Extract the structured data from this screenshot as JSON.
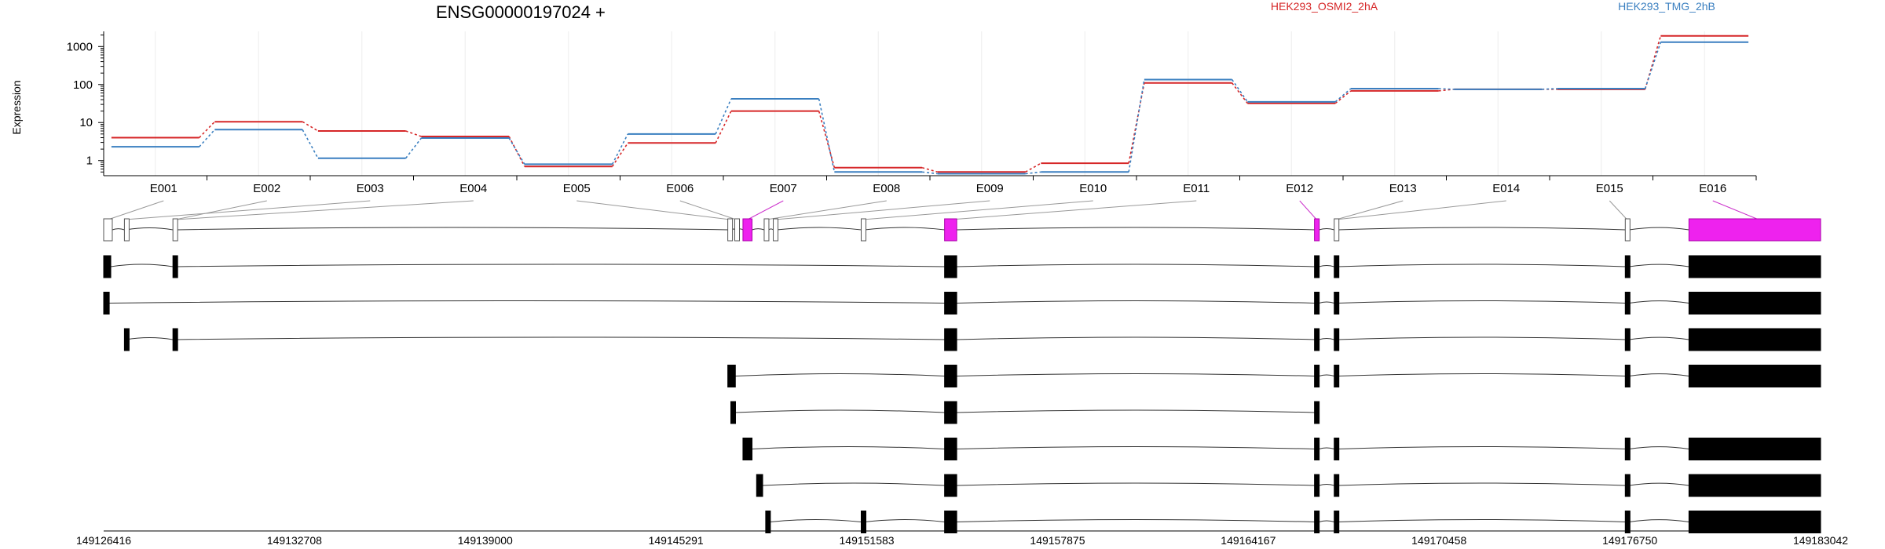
{
  "chart_data": {
    "type": "line",
    "title": "ENSG00000197024 +",
    "ylabel": "Expression",
    "yscale": "log",
    "y_ticks": [
      "1",
      "10",
      "100",
      "1000"
    ],
    "y_tick_values": [
      1,
      10,
      100,
      1000
    ],
    "ylim": [
      0.4,
      2500
    ],
    "categories": [
      "E001",
      "E002",
      "E003",
      "E004",
      "E005",
      "E006",
      "E007",
      "E008",
      "E009",
      "E010",
      "E011",
      "E012",
      "E013",
      "E014",
      "E015",
      "E016"
    ],
    "series": [
      {
        "name": "HEK293_OSMI2_2hA",
        "color": "#d62728",
        "values": [
          4.0,
          10.5,
          6.0,
          4.3,
          0.7,
          2.9,
          20,
          0.65,
          0.5,
          0.85,
          110,
          32,
          68,
          75,
          75,
          1900
        ]
      },
      {
        "name": "HEK293_TMG_2hB",
        "color": "#3a7fc0",
        "values": [
          2.3,
          6.5,
          1.15,
          3.9,
          0.8,
          5.0,
          42,
          0.5,
          0.45,
          0.5,
          135,
          35,
          78,
          75,
          78,
          1300
        ]
      }
    ],
    "highlighted_exons": [
      "E007",
      "E012",
      "E016"
    ],
    "gene_axis": {
      "ticks": [
        "149126416",
        "149132708",
        "149139000",
        "149145291",
        "149151583",
        "149157875",
        "149164167",
        "149170458",
        "149176750",
        "149183042"
      ],
      "tick_values": [
        149126416,
        149132708,
        149139000,
        149145291,
        149151583,
        149157875,
        149164167,
        149170458,
        149176750,
        149183042
      ]
    },
    "gene_model": [
      {
        "start": 149126416,
        "end": 149126700,
        "highlight": false
      },
      {
        "start": 149127100,
        "end": 149127150,
        "highlight": false
      },
      {
        "start": 149128700,
        "end": 149128850,
        "highlight": false
      },
      {
        "start": 149147000,
        "end": 149147150,
        "highlight": false
      },
      {
        "start": 149147230,
        "end": 149147330,
        "highlight": false
      },
      {
        "start": 149147500,
        "end": 149147800,
        "highlight": true
      },
      {
        "start": 149148200,
        "end": 149148350,
        "highlight": false
      },
      {
        "start": 149148500,
        "end": 149148620,
        "highlight": false
      },
      {
        "start": 149151400,
        "end": 149151520,
        "highlight": false
      },
      {
        "start": 149154150,
        "end": 149154550,
        "highlight": true
      },
      {
        "start": 149166350,
        "end": 149166500,
        "highlight": true
      },
      {
        "start": 149167000,
        "end": 149167120,
        "highlight": false
      },
      {
        "start": 149176600,
        "end": 149176730,
        "highlight": false
      },
      {
        "start": 149178700,
        "end": 149183042,
        "highlight": true
      }
    ],
    "exon_links": [
      {
        "exon": "E001",
        "target": 149126560
      },
      {
        "exon": "E002",
        "target": 149128780
      },
      {
        "exon": "E003",
        "target": 149127120
      },
      {
        "exon": "E004",
        "target": 149128780
      },
      {
        "exon": "E005",
        "target": 149147080
      },
      {
        "exon": "E006",
        "target": 149147280
      },
      {
        "exon": "E007",
        "target": 149147650
      },
      {
        "exon": "E008",
        "target": 149148270
      },
      {
        "exon": "E009",
        "target": 149148560
      },
      {
        "exon": "E010",
        "target": 149151460
      },
      {
        "exon": "E011",
        "target": 149154350
      },
      {
        "exon": "E012",
        "target": 149166420
      },
      {
        "exon": "E013",
        "target": 149167060
      },
      {
        "exon": "E014",
        "target": 149167060
      },
      {
        "exon": "E015",
        "target": 149176660
      },
      {
        "exon": "E016",
        "target": 149181000
      }
    ],
    "transcripts": [
      [
        [
          149126416,
          149126650
        ],
        [
          149128700,
          149128850
        ],
        [
          149154150,
          149154550
        ],
        [
          149166350,
          149166500
        ],
        [
          149167000,
          149167120
        ],
        [
          149176600,
          149176730
        ],
        [
          149178700,
          149183042
        ]
      ],
      [
        [
          149126416,
          149126600
        ],
        [
          149154150,
          149154550
        ],
        [
          149166350,
          149166500
        ],
        [
          149167000,
          149167120
        ],
        [
          149176600,
          149176730
        ],
        [
          149178700,
          149183042
        ]
      ],
      [
        [
          149127100,
          149127150
        ],
        [
          149128700,
          149128850
        ],
        [
          149154150,
          149154550
        ],
        [
          149166350,
          149166500
        ],
        [
          149167000,
          149167120
        ],
        [
          149176600,
          149176730
        ],
        [
          149178700,
          149183042
        ]
      ],
      [
        [
          149147000,
          149147250
        ],
        [
          149154150,
          149154550
        ],
        [
          149166350,
          149166500
        ],
        [
          149167000,
          149167120
        ],
        [
          149176600,
          149176730
        ],
        [
          149178700,
          149183042
        ]
      ],
      [
        [
          149147100,
          149147250
        ],
        [
          149154150,
          149154550
        ],
        [
          149166350,
          149166500
        ]
      ],
      [
        [
          149147500,
          149147800
        ],
        [
          149154150,
          149154550
        ],
        [
          149166350,
          149166500
        ],
        [
          149167000,
          149167120
        ],
        [
          149176600,
          149176730
        ],
        [
          149178700,
          149183042
        ]
      ],
      [
        [
          149147950,
          149148150
        ],
        [
          149154150,
          149154550
        ],
        [
          149166350,
          149166500
        ],
        [
          149167000,
          149167120
        ],
        [
          149176600,
          149176730
        ],
        [
          149178700,
          149183042
        ]
      ],
      [
        [
          149148250,
          149148400
        ],
        [
          149151400,
          149151520
        ],
        [
          149154150,
          149154550
        ],
        [
          149166350,
          149166500
        ],
        [
          149167000,
          149167120
        ],
        [
          149176600,
          149176730
        ],
        [
          149178700,
          149183042
        ]
      ]
    ]
  }
}
